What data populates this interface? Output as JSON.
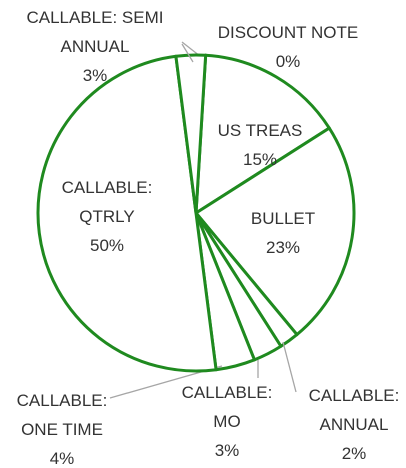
{
  "chart_data": {
    "type": "pie",
    "categories": [
      "DISCOUNT NOTE",
      "US TREAS",
      "BULLET",
      "CALLABLE: ANNUAL",
      "CALLABLE: MO",
      "CALLABLE: ONE TIME",
      "CALLABLE: QTRLY",
      "CALLABLE: SEMI ANNUAL"
    ],
    "values": [
      0,
      15,
      23,
      2,
      3,
      4,
      50,
      3
    ],
    "value_labels": [
      "0%",
      "15%",
      "23%",
      "2%",
      "3%",
      "4%",
      "50%",
      "3%"
    ],
    "color": "#ffffff",
    "edge_color": "#1f8a1f"
  }
}
